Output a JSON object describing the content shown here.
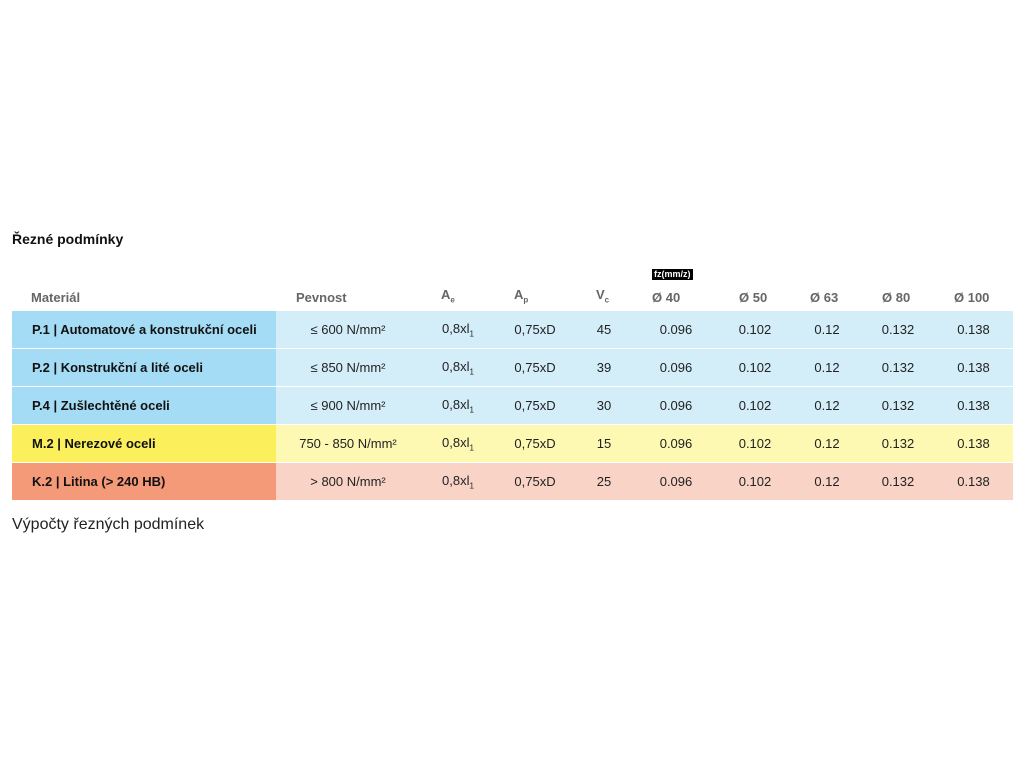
{
  "title": "Řezné podmínky",
  "footer": "Výpočty řezných podmínek",
  "headers": {
    "material": "Materiál",
    "pevnost": "Pevnost",
    "ae": "A",
    "ae_sub": "e",
    "ap": "A",
    "ap_sub": "p",
    "vc": "V",
    "vc_sub": "c",
    "fz_label": "fz(mm/z)",
    "d40": "Ø 40",
    "d50": "Ø 50",
    "d63": "Ø 63",
    "d80": "Ø 80",
    "d100": "Ø 100"
  },
  "colors": {
    "blue": "#a4dcf5",
    "yellow": "#fbf05b",
    "red": "#f59a78"
  },
  "rows": [
    {
      "material": "P.1 | Automatové a konstrukční oceli",
      "pevnost": "≤ 600 N/mm²",
      "ae": "0,8xl",
      "ae_sub": "1",
      "ap": "0,75xD",
      "vc": "45",
      "d40": "0.096",
      "d50": "0.102",
      "d63": "0.12",
      "d80": "0.132",
      "d100": "0.138"
    },
    {
      "material": "P.2 | Konstrukční a lité oceli",
      "pevnost": "≤ 850 N/mm²",
      "ae": "0,8xl",
      "ae_sub": "1",
      "ap": "0,75xD",
      "vc": "39",
      "d40": "0.096",
      "d50": "0.102",
      "d63": "0.12",
      "d80": "0.132",
      "d100": "0.138"
    },
    {
      "material": "P.4 | Zušlechtěné oceli",
      "pevnost": "≤ 900 N/mm²",
      "ae": "0,8xl",
      "ae_sub": "1",
      "ap": "0,75xD",
      "vc": "30",
      "d40": "0.096",
      "d50": "0.102",
      "d63": "0.12",
      "d80": "0.132",
      "d100": "0.138"
    },
    {
      "material": "M.2 | Nerezové oceli",
      "pevnost": "750 - 850 N/mm²",
      "ae": "0,8xl",
      "ae_sub": "1",
      "ap": "0,75xD",
      "vc": "15",
      "d40": "0.096",
      "d50": "0.102",
      "d63": "0.12",
      "d80": "0.132",
      "d100": "0.138"
    },
    {
      "material": "K.2 | Litina (> 240 HB)",
      "pevnost": "> 800 N/mm²",
      "ae": "0,8xl",
      "ae_sub": "1",
      "ap": "0,75xD",
      "vc": "25",
      "d40": "0.096",
      "d50": "0.102",
      "d63": "0.12",
      "d80": "0.132",
      "d100": "0.138"
    }
  ]
}
